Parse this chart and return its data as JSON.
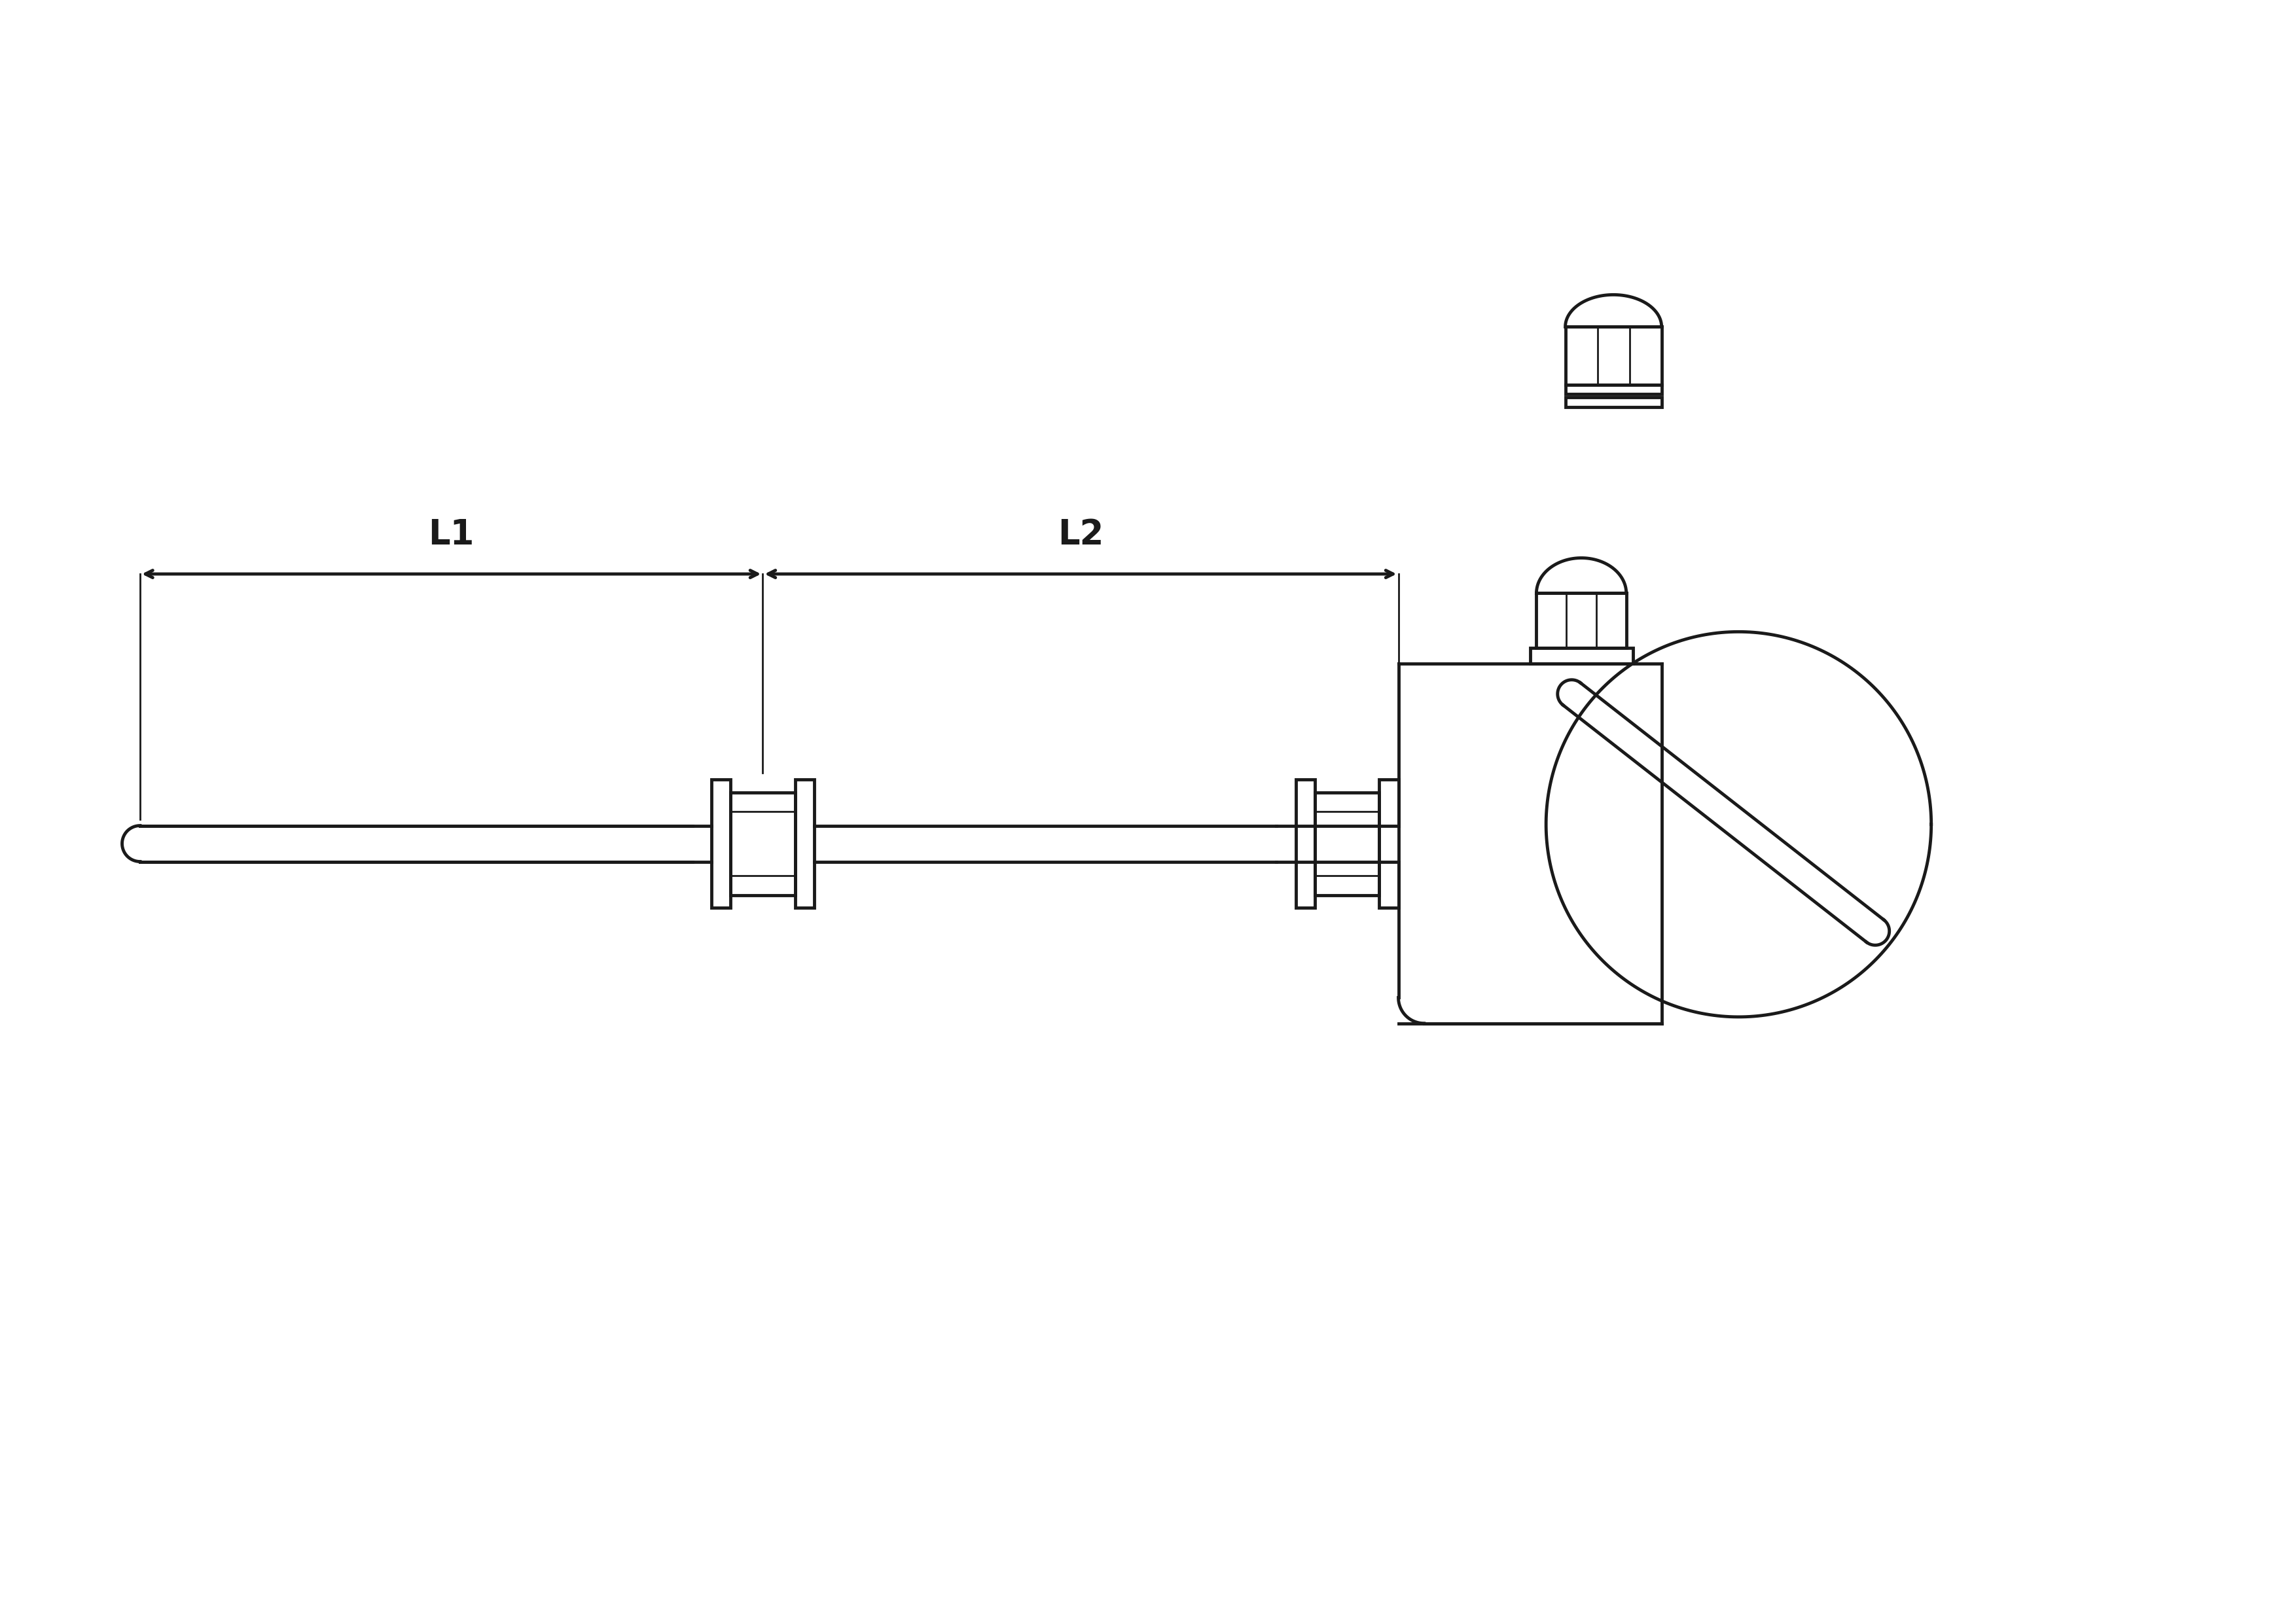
{
  "bg_color": "#ffffff",
  "line_color": "#1a1a1a",
  "lw": 3.5,
  "lw_thin": 2.0,
  "fig_width": 35.08,
  "fig_height": 24.8
}
